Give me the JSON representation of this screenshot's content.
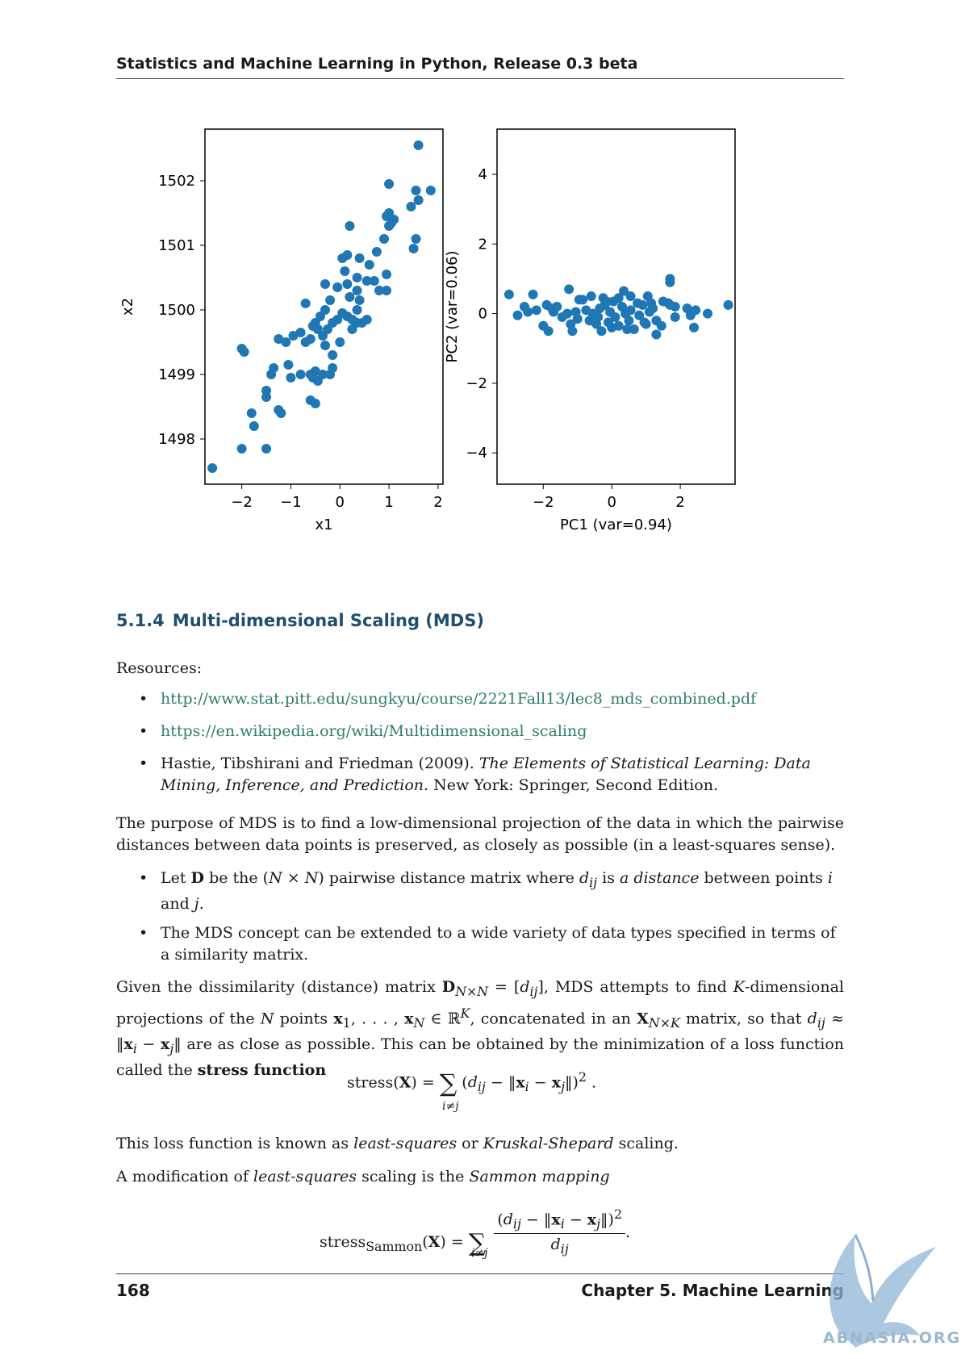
{
  "header": {
    "title": "Statistics and Machine Learning in Python, Release 0.3 beta"
  },
  "figure": {
    "chart_data": [
      {
        "type": "scatter",
        "xlabel": "x1",
        "ylabel": "x2",
        "xlim": [
          -2.75,
          2.1
        ],
        "ylim": [
          1497.3,
          1502.8
        ],
        "xticks": [
          -2,
          -1,
          0,
          1,
          2
        ],
        "xtick_labels": [
          "−2",
          "−1",
          "0",
          "1",
          "2"
        ],
        "yticks": [
          1498,
          1499,
          1500,
          1501,
          1502
        ],
        "ytick_labels": [
          "1498",
          "1499",
          "1500",
          "1501",
          "1502"
        ],
        "marker_color": "#1f77b4",
        "points": [
          [
            -2.6,
            1497.55
          ],
          [
            -2.0,
            1497.85
          ],
          [
            -1.5,
            1497.85
          ],
          [
            -1.75,
            1498.2
          ],
          [
            -1.8,
            1498.4
          ],
          [
            -1.2,
            1498.4
          ],
          [
            -1.25,
            1498.45
          ],
          [
            -1.5,
            1498.65
          ],
          [
            -1.5,
            1498.75
          ],
          [
            -1.4,
            1499.0
          ],
          [
            -1.35,
            1499.1
          ],
          [
            -2.0,
            1499.4
          ],
          [
            -1.95,
            1499.35
          ],
          [
            -1.25,
            1499.55
          ],
          [
            -1.1,
            1499.5
          ],
          [
            -1.05,
            1499.15
          ],
          [
            -1.0,
            1498.95
          ],
          [
            -0.8,
            1499.0
          ],
          [
            -0.6,
            1499.0
          ],
          [
            -0.55,
            1498.95
          ],
          [
            -0.5,
            1499.05
          ],
          [
            -0.45,
            1498.9
          ],
          [
            -0.35,
            1499.0
          ],
          [
            -0.2,
            1499.0
          ],
          [
            -0.15,
            1499.1
          ],
          [
            -0.6,
            1498.6
          ],
          [
            -0.5,
            1498.55
          ],
          [
            -0.95,
            1499.6
          ],
          [
            -0.8,
            1499.65
          ],
          [
            -0.7,
            1499.5
          ],
          [
            -0.6,
            1499.55
          ],
          [
            -0.55,
            1499.75
          ],
          [
            -0.45,
            1499.7
          ],
          [
            -0.35,
            1499.6
          ],
          [
            -0.25,
            1499.7
          ],
          [
            -0.15,
            1499.8
          ],
          [
            -0.05,
            1499.85
          ],
          [
            0.05,
            1499.95
          ],
          [
            0.15,
            1499.9
          ],
          [
            0.25,
            1499.85
          ],
          [
            0.35,
            1499.8
          ],
          [
            0.45,
            1499.8
          ],
          [
            0.55,
            1499.85
          ],
          [
            0.35,
            1500.0
          ],
          [
            0.4,
            1500.15
          ],
          [
            0.2,
            1500.2
          ],
          [
            0.15,
            1500.4
          ],
          [
            0.35,
            1500.3
          ],
          [
            -0.3,
            1500.0
          ],
          [
            -0.2,
            1500.15
          ],
          [
            -0.4,
            1499.9
          ],
          [
            -0.5,
            1499.8
          ],
          [
            -0.3,
            1499.45
          ],
          [
            -0.15,
            1499.3
          ],
          [
            0.0,
            1499.5
          ],
          [
            0.25,
            1499.7
          ],
          [
            -0.7,
            1500.1
          ],
          [
            -0.3,
            1500.4
          ],
          [
            -0.05,
            1500.35
          ],
          [
            0.1,
            1500.6
          ],
          [
            0.35,
            1500.5
          ],
          [
            0.55,
            1500.45
          ],
          [
            0.7,
            1500.45
          ],
          [
            0.8,
            1500.3
          ],
          [
            0.95,
            1500.3
          ],
          [
            0.95,
            1500.55
          ],
          [
            0.4,
            1500.8
          ],
          [
            0.6,
            1500.7
          ],
          [
            0.75,
            1500.9
          ],
          [
            0.9,
            1501.1
          ],
          [
            0.2,
            1501.3
          ],
          [
            0.05,
            1500.8
          ],
          [
            0.15,
            1500.85
          ],
          [
            1.0,
            1501.3
          ],
          [
            1.1,
            1501.4
          ],
          [
            1.05,
            1501.35
          ],
          [
            0.95,
            1501.45
          ],
          [
            1.0,
            1501.5
          ],
          [
            1.55,
            1501.1
          ],
          [
            1.5,
            1500.95
          ],
          [
            1.45,
            1501.6
          ],
          [
            1.55,
            1501.85
          ],
          [
            1.6,
            1501.7
          ],
          [
            1.85,
            1501.85
          ],
          [
            1.0,
            1501.95
          ],
          [
            1.6,
            1502.55
          ]
        ]
      },
      {
        "type": "scatter",
        "xlabel": "PC1 (var=0.94)",
        "ylabel": "PC2 (var=0.06)",
        "xlim": [
          -3.35,
          3.6
        ],
        "ylim": [
          -4.9,
          5.3
        ],
        "xticks": [
          -2,
          0,
          2
        ],
        "xtick_labels": [
          "−2",
          "0",
          "2"
        ],
        "yticks": [
          -4,
          -2,
          0,
          2,
          4
        ],
        "ytick_labels": [
          "−4",
          "−2",
          "0",
          "2",
          "4"
        ],
        "marker_color": "#1f77b4",
        "points": [
          [
            -3.0,
            0.55
          ],
          [
            -2.75,
            -0.05
          ],
          [
            -2.55,
            0.2
          ],
          [
            -2.45,
            0.05
          ],
          [
            -2.3,
            0.55
          ],
          [
            -2.2,
            0.1
          ],
          [
            -2.0,
            -0.35
          ],
          [
            -1.85,
            -0.5
          ],
          [
            -1.9,
            0.25
          ],
          [
            -1.75,
            0.15
          ],
          [
            -1.7,
            0.05
          ],
          [
            -1.6,
            0.2
          ],
          [
            -1.3,
            0.0
          ],
          [
            -1.2,
            -0.3
          ],
          [
            -1.15,
            -0.5
          ],
          [
            -1.05,
            0.05
          ],
          [
            -1.0,
            -0.15
          ],
          [
            -1.25,
            0.7
          ],
          [
            -0.95,
            0.4
          ],
          [
            -0.85,
            0.4
          ],
          [
            -0.75,
            0.1
          ],
          [
            -0.65,
            -0.2
          ],
          [
            -0.55,
            0.0
          ],
          [
            -0.45,
            -0.3
          ],
          [
            -0.35,
            0.15
          ],
          [
            -0.3,
            -0.5
          ],
          [
            -0.2,
            0.25
          ],
          [
            -0.25,
            0.45
          ],
          [
            -0.1,
            -0.25
          ],
          [
            -0.05,
            0.05
          ],
          [
            0.05,
            0.35
          ],
          [
            0.1,
            -0.1
          ],
          [
            0.2,
            -0.35
          ],
          [
            0.3,
            0.2
          ],
          [
            0.35,
            0.65
          ],
          [
            0.4,
            0.0
          ],
          [
            0.5,
            -0.2
          ],
          [
            0.55,
            0.1
          ],
          [
            0.65,
            -0.45
          ],
          [
            0.75,
            0.3
          ],
          [
            0.8,
            -0.05
          ],
          [
            0.9,
            0.25
          ],
          [
            1.0,
            -0.3
          ],
          [
            1.05,
            0.5
          ],
          [
            1.1,
            0.05
          ],
          [
            1.2,
            0.15
          ],
          [
            1.3,
            -0.2
          ],
          [
            1.3,
            -0.6
          ],
          [
            1.45,
            -0.35
          ],
          [
            1.5,
            0.35
          ],
          [
            1.65,
            0.3
          ],
          [
            1.7,
            0.25
          ],
          [
            1.7,
            1.0
          ],
          [
            1.7,
            0.9
          ],
          [
            1.85,
            -0.1
          ],
          [
            1.85,
            0.2
          ],
          [
            2.2,
            0.15
          ],
          [
            2.4,
            -0.4
          ],
          [
            2.3,
            -0.05
          ],
          [
            2.45,
            0.1
          ],
          [
            2.8,
            0.0
          ],
          [
            3.4,
            0.25
          ],
          [
            -0.6,
            0.5
          ],
          [
            -0.4,
            -0.1
          ],
          [
            0.0,
            -0.4
          ],
          [
            0.2,
            0.45
          ],
          [
            0.55,
            0.5
          ],
          [
            0.95,
            -0.25
          ],
          [
            1.15,
            0.3
          ],
          [
            -1.45,
            -0.1
          ],
          [
            -0.15,
            0.35
          ],
          [
            0.45,
            -0.45
          ]
        ]
      }
    ]
  },
  "section": {
    "number": "5.1.4",
    "title": "Multi-dimensional Scaling (MDS)"
  },
  "resources": {
    "label": "Resources:",
    "link1": "http://www.stat.pitt.edu/sungkyu/course/2221Fall13/lec8_mds_combined.pdf",
    "link2": "https://en.wikipedia.org/wiki/Multidimensional_scaling",
    "ref_authors": "Hastie, Tibshirani and Friedman (2009).",
    "ref_title": "The Elements of Statistical Learning: Data Mining, Inference, and Prediction.",
    "ref_publisher": "New York: Springer, Second Edition."
  },
  "body": {
    "purpose": "The purpose of MDS is to find a low-dimensional projection of the data in which the pairwise distances between data points is preserved, as closely as possible (in a least-squares sense).",
    "bullet_concept": "The MDS concept can be extended to a wide variety of data types specified in terms of a similarity matrix.",
    "loss_known_prefix": "This loss function is known as ",
    "loss_known_ls": "least-squares",
    "loss_known_or": " or ",
    "loss_known_ks": "Kruskal-Shepard",
    "loss_known_suffix": " scaling.",
    "mod_prefix": "A modification of ",
    "mod_ls": "least-squares",
    "mod_mid": " scaling is the ",
    "mod_sammon": "Sammon mapping"
  },
  "footer": {
    "page_number": "168",
    "chapter": "Chapter 5.  Machine Learning"
  },
  "watermark": {
    "text": "ABNASIA.ORG"
  }
}
